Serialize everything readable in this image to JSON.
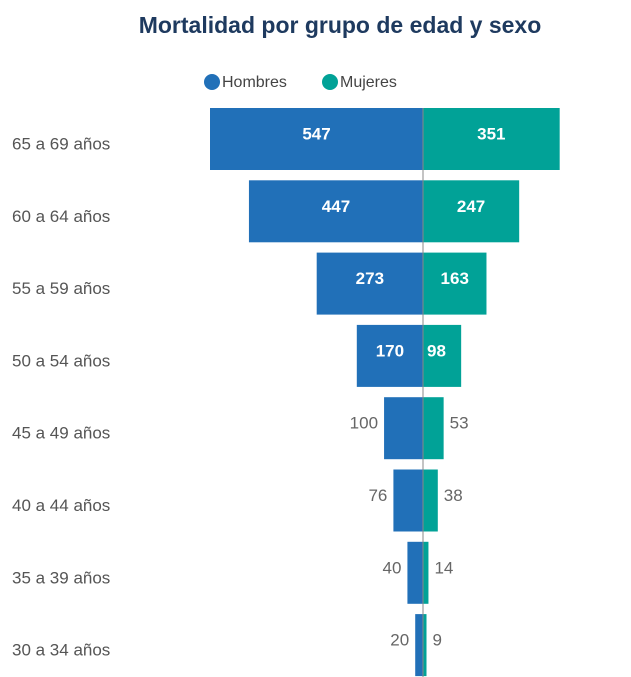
{
  "chart_data": {
    "type": "butterfly",
    "title": "Mortalidad por grupo de edad y sexo",
    "categories": [
      "65 a 69 años",
      "60 a 64 años",
      "55 a 59 años",
      "50 a 54 años",
      "45 a 49 años",
      "40 a 44 años",
      "35 a 39 años",
      "30 a 34 años"
    ],
    "series": [
      {
        "name": "Hombres",
        "color": "#2170b8",
        "values": [
          547,
          447,
          273,
          170,
          100,
          76,
          40,
          20
        ]
      },
      {
        "name": "Mujeres",
        "color": "#01a297",
        "values": [
          351,
          247,
          163,
          98,
          53,
          38,
          14,
          9
        ]
      }
    ],
    "legend": "top"
  }
}
